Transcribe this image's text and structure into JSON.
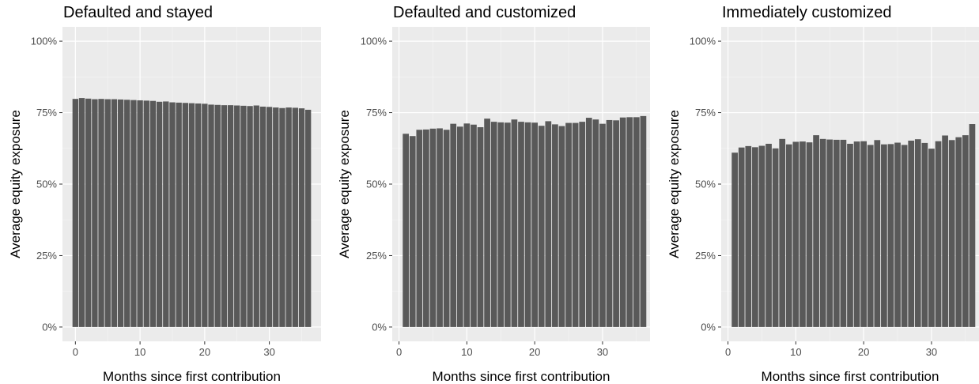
{
  "chart_data": [
    {
      "type": "bar",
      "title": "Defaulted and stayed",
      "xlabel": "Months since first contribution",
      "ylabel": "Average equity exposure",
      "x": [
        0,
        1,
        2,
        3,
        4,
        5,
        6,
        7,
        8,
        9,
        10,
        11,
        12,
        13,
        14,
        15,
        16,
        17,
        18,
        19,
        20,
        21,
        22,
        23,
        24,
        25,
        26,
        27,
        28,
        29,
        30,
        31,
        32,
        33,
        34,
        35,
        36
      ],
      "values": [
        79.8,
        80.1,
        79.9,
        79.7,
        79.8,
        79.7,
        79.7,
        79.6,
        79.5,
        79.4,
        79.3,
        79.2,
        79.1,
        78.8,
        78.9,
        78.6,
        78.5,
        78.4,
        78.3,
        78.2,
        78.1,
        77.8,
        77.7,
        77.6,
        77.6,
        77.5,
        77.4,
        77.3,
        77.5,
        77.1,
        77.0,
        76.8,
        76.6,
        76.8,
        76.7,
        76.5,
        76.0
      ],
      "xlim": [
        -2,
        38
      ],
      "xticks": [
        0,
        10,
        20,
        30
      ],
      "ylim": [
        -5,
        105
      ],
      "yticks": [
        0,
        25,
        50,
        75,
        100
      ],
      "ytick_labels": [
        "0%",
        "25%",
        "50%",
        "75%",
        "100%"
      ],
      "grid": true,
      "bar_color": "#595959",
      "panel_color": "#ebebeb"
    },
    {
      "type": "bar",
      "title": "Defaulted and customized",
      "xlabel": "Months since first contribution",
      "ylabel": "Average equity exposure",
      "x": [
        1,
        2,
        3,
        4,
        5,
        6,
        7,
        8,
        9,
        10,
        11,
        12,
        13,
        14,
        15,
        16,
        17,
        18,
        19,
        20,
        21,
        22,
        23,
        24,
        25,
        26,
        27,
        28,
        29,
        30,
        31,
        32,
        33,
        34,
        35,
        36
      ],
      "values": [
        67.6,
        66.8,
        69.0,
        69.1,
        69.4,
        69.5,
        69.0,
        71.1,
        70.1,
        71.2,
        70.8,
        69.9,
        72.9,
        71.8,
        71.6,
        71.5,
        72.6,
        71.8,
        71.6,
        71.5,
        70.4,
        72.0,
        70.9,
        70.3,
        71.4,
        71.4,
        71.8,
        73.2,
        72.6,
        71.1,
        72.4,
        72.3,
        73.3,
        73.4,
        73.4,
        73.8
      ],
      "xlim": [
        -1,
        37
      ],
      "xticks": [
        0,
        10,
        20,
        30
      ],
      "ylim": [
        -5,
        105
      ],
      "yticks": [
        0,
        25,
        50,
        75,
        100
      ],
      "ytick_labels": [
        "0%",
        "25%",
        "50%",
        "75%",
        "100%"
      ],
      "grid": true,
      "bar_color": "#595959",
      "panel_color": "#ebebeb"
    },
    {
      "type": "bar",
      "title": "Immediately customized",
      "xlabel": "Months since first contribution",
      "ylabel": "Average equity exposure",
      "x": [
        1,
        2,
        3,
        4,
        5,
        6,
        7,
        8,
        9,
        10,
        11,
        12,
        13,
        14,
        15,
        16,
        17,
        18,
        19,
        20,
        21,
        22,
        23,
        24,
        25,
        26,
        27,
        28,
        29,
        30,
        31,
        32,
        33,
        34,
        35,
        36
      ],
      "values": [
        61.0,
        62.8,
        63.3,
        62.9,
        63.4,
        64.1,
        62.5,
        65.8,
        63.9,
        64.8,
        64.9,
        64.6,
        67.1,
        65.8,
        65.6,
        65.5,
        65.5,
        64.1,
        64.9,
        65.0,
        63.7,
        65.4,
        63.9,
        64.0,
        64.5,
        63.7,
        65.2,
        65.7,
        64.4,
        62.4,
        65.0,
        67.0,
        65.4,
        66.4,
        67.1,
        71.0
      ],
      "xlim": [
        -1,
        37
      ],
      "xticks": [
        0,
        10,
        20,
        30
      ],
      "ylim": [
        -5,
        105
      ],
      "yticks": [
        0,
        25,
        50,
        75,
        100
      ],
      "ytick_labels": [
        "0%",
        "25%",
        "50%",
        "75%",
        "100%"
      ],
      "grid": true,
      "bar_color": "#595959",
      "panel_color": "#ebebeb"
    }
  ]
}
